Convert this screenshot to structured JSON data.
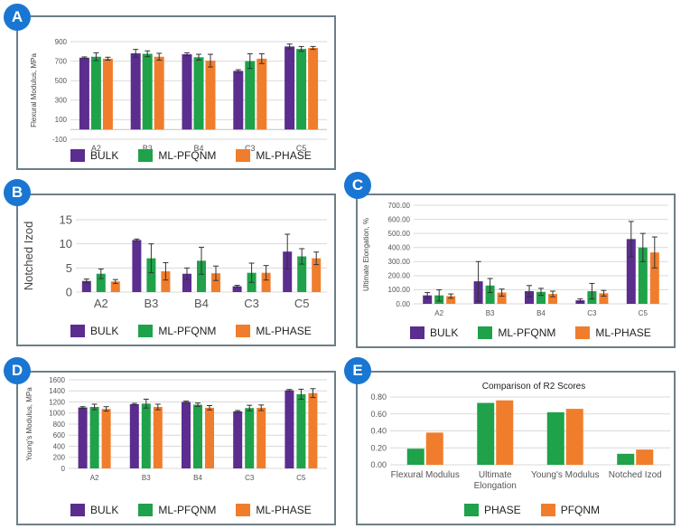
{
  "colors": {
    "bulk": "#5b2d8e",
    "pfqnm": "#1fa24a",
    "phase": "#f07d2c"
  },
  "series_names": {
    "bulk": "BULK",
    "pfqnm": "ML-PFQNM",
    "phase": "ML-PHASE",
    "phase2": "PHASE",
    "pfqnm2": "PFQNM"
  },
  "badges": {
    "a": "A",
    "b": "B",
    "c": "C",
    "d": "D",
    "e": "E"
  },
  "chart_data": [
    {
      "id": "A",
      "type": "bar",
      "ylabel": "Flexural Modulus, MPa",
      "ylim": [
        -100,
        900
      ],
      "yticks": [
        "900",
        "700",
        "500",
        "300",
        "100",
        "-100"
      ],
      "ytick_values": [
        900,
        700,
        500,
        300,
        100,
        -100
      ],
      "categories": [
        "A2",
        "B3",
        "B4",
        "C3",
        "C5"
      ],
      "series": [
        {
          "name": "BULK",
          "values": [
            735,
            780,
            770,
            600,
            850
          ],
          "err": [
            8,
            40,
            15,
            12,
            25
          ]
        },
        {
          "name": "ML-PFQNM",
          "values": [
            745,
            775,
            740,
            700,
            825
          ],
          "err": [
            40,
            30,
            30,
            75,
            25
          ]
        },
        {
          "name": "ML-PHASE",
          "values": [
            725,
            745,
            705,
            725,
            835
          ],
          "err": [
            15,
            35,
            65,
            50,
            15
          ]
        }
      ]
    },
    {
      "id": "B",
      "type": "bar",
      "ylabel": "Notched Izod",
      "ylim": [
        0,
        15
      ],
      "yticks": [
        "15",
        "10",
        "5",
        "0"
      ],
      "ytick_values": [
        15,
        10,
        5,
        0
      ],
      "categories": [
        "A2",
        "B3",
        "B4",
        "C3",
        "C5"
      ],
      "series": [
        {
          "name": "BULK",
          "values": [
            2.3,
            10.8,
            3.8,
            1.2,
            8.4
          ],
          "err": [
            0.4,
            0.2,
            1.2,
            0.2,
            3.6
          ]
        },
        {
          "name": "ML-PFQNM",
          "values": [
            3.8,
            7.0,
            6.5,
            4.0,
            7.4
          ],
          "err": [
            1.0,
            3.0,
            2.8,
            2.0,
            1.6
          ]
        },
        {
          "name": "ML-PHASE",
          "values": [
            2.2,
            4.3,
            3.9,
            4.0,
            7.0
          ],
          "err": [
            0.4,
            1.8,
            1.5,
            1.5,
            1.3
          ]
        }
      ]
    },
    {
      "id": "C",
      "type": "bar",
      "ylabel": "Ultimate Elongation, %",
      "ylim": [
        0,
        700
      ],
      "yticks": [
        "700.00",
        "600.00",
        "500.00",
        "400.00",
        "300.00",
        "200.00",
        "100.00",
        "0.00"
      ],
      "ytick_values": [
        700,
        600,
        500,
        400,
        300,
        200,
        100,
        0
      ],
      "categories": [
        "A2",
        "B3",
        "B4",
        "C3",
        "C5"
      ],
      "series": [
        {
          "name": "BULK",
          "values": [
            60,
            160,
            90,
            25,
            460
          ],
          "err": [
            20,
            140,
            40,
            10,
            125
          ]
        },
        {
          "name": "ML-PFQNM",
          "values": [
            60,
            130,
            85,
            90,
            400
          ],
          "err": [
            40,
            50,
            25,
            55,
            100
          ]
        },
        {
          "name": "ML-PHASE",
          "values": [
            55,
            80,
            70,
            75,
            365
          ],
          "err": [
            15,
            25,
            20,
            20,
            110
          ]
        }
      ]
    },
    {
      "id": "D",
      "type": "bar",
      "ylabel": "Young's Modulus, MPa",
      "ylim": [
        0,
        1600
      ],
      "yticks": [
        "1600",
        "1400",
        "1200",
        "1000",
        "800",
        "600",
        "400",
        "200",
        "0"
      ],
      "ytick_values": [
        1600,
        1400,
        1200,
        1000,
        800,
        600,
        400,
        200,
        0
      ],
      "categories": [
        "A2",
        "B3",
        "B4",
        "C3",
        "C5"
      ],
      "series": [
        {
          "name": "BULK",
          "values": [
            1100,
            1160,
            1200,
            1030,
            1410
          ],
          "err": [
            15,
            15,
            15,
            15,
            15
          ]
        },
        {
          "name": "ML-PFQNM",
          "values": [
            1110,
            1170,
            1150,
            1090,
            1340
          ],
          "err": [
            50,
            80,
            30,
            50,
            90
          ]
        },
        {
          "name": "ML-PHASE",
          "values": [
            1075,
            1110,
            1095,
            1095,
            1360
          ],
          "err": [
            40,
            50,
            40,
            50,
            80
          ]
        }
      ]
    },
    {
      "id": "E",
      "type": "bar",
      "title": "Comparison of R2 Scores",
      "ylim": [
        0,
        0.8
      ],
      "yticks": [
        "0.80",
        "0.60",
        "0.40",
        "0.20",
        "0.00"
      ],
      "ytick_values": [
        0.8,
        0.6,
        0.4,
        0.2,
        0
      ],
      "categories": [
        "Flexural Modulus",
        "Ultimate Elongation",
        "Young's Modulus",
        "Notched Izod"
      ],
      "series": [
        {
          "name": "PHASE",
          "values": [
            0.19,
            0.73,
            0.62,
            0.13
          ]
        },
        {
          "name": "PFQNM",
          "values": [
            0.38,
            0.76,
            0.66,
            0.18
          ]
        }
      ]
    }
  ]
}
